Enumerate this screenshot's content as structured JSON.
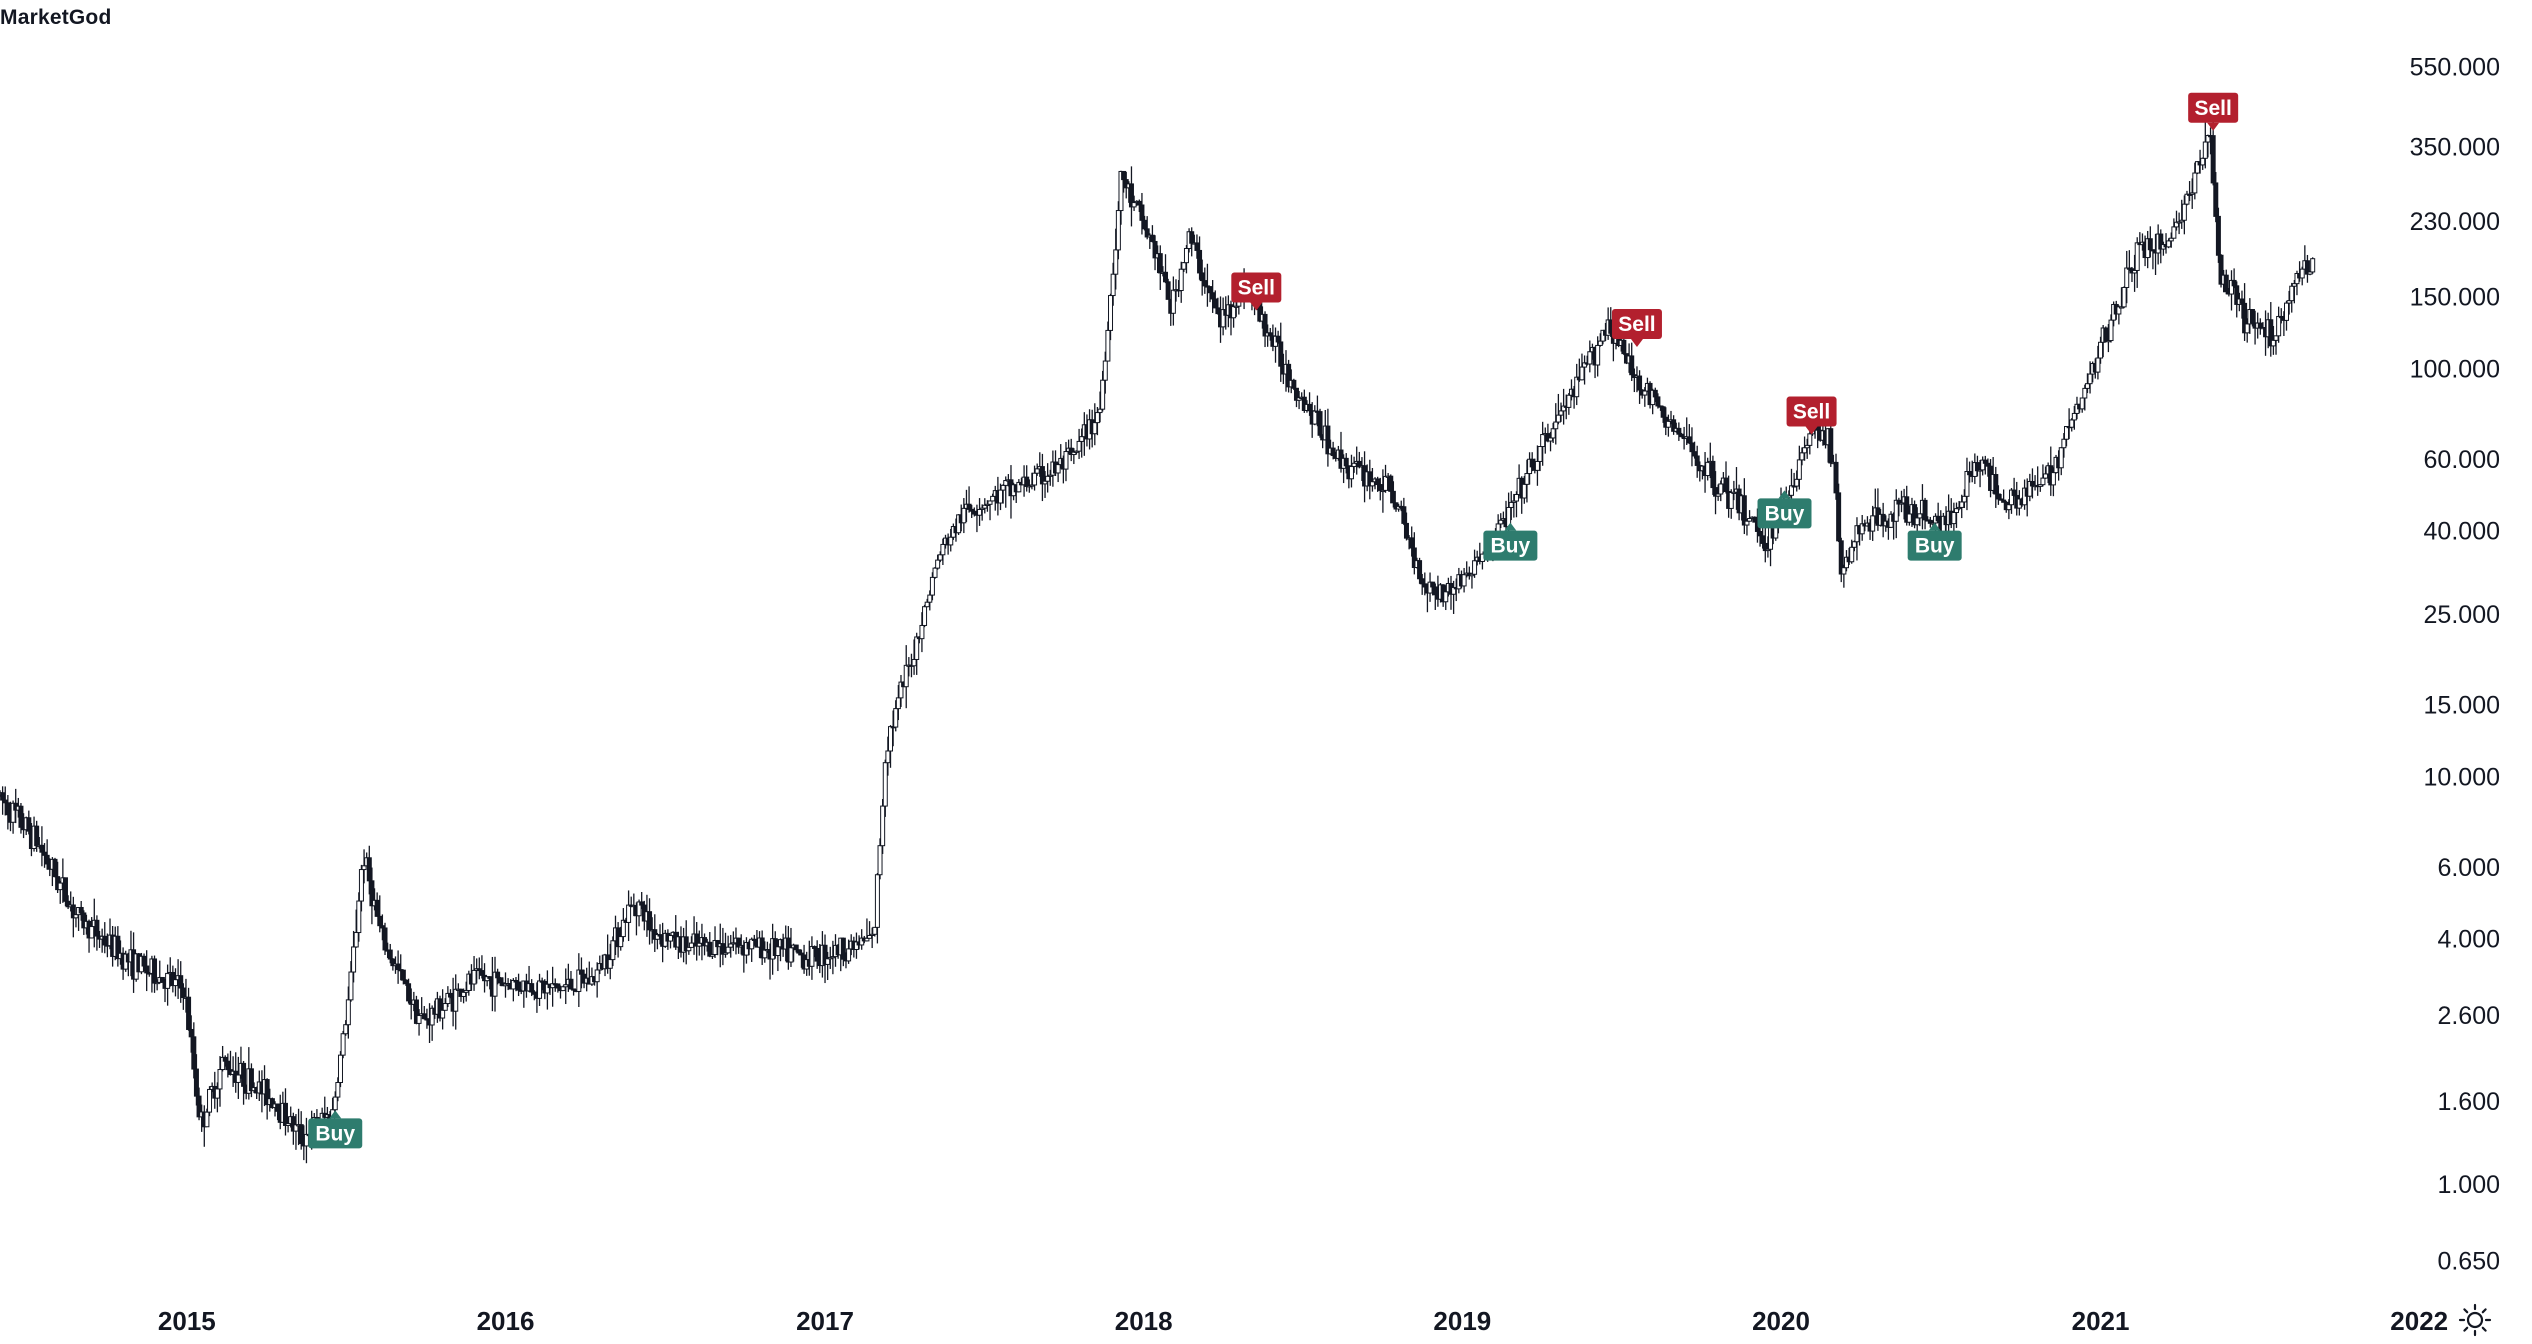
{
  "brand": "MarketGod",
  "chart_data": {
    "type": "candlestick",
    "yscale": "log",
    "ylim": [
      0.52,
      800
    ],
    "y_ticks": [
      "550.000",
      "350.000",
      "230.000",
      "150.000",
      "100.000",
      "60.000",
      "40.000",
      "25.000",
      "15.000",
      "10.000",
      "6.000",
      "4.000",
      "2.600",
      "1.600",
      "1.000",
      "0.650"
    ],
    "x_range": [
      "2014-06-01",
      "2022-04-15"
    ],
    "x_ticks": [
      {
        "date": "2015-01-01",
        "label": "2015"
      },
      {
        "date": "2016-01-01",
        "label": "2016"
      },
      {
        "date": "2017-01-01",
        "label": "2017"
      },
      {
        "date": "2018-01-01",
        "label": "2018"
      },
      {
        "date": "2019-01-01",
        "label": "2019"
      },
      {
        "date": "2020-01-01",
        "label": "2020"
      },
      {
        "date": "2021-01-01",
        "label": "2021"
      },
      {
        "date": "2022-01-01",
        "label": "2022"
      }
    ],
    "price_path": [
      [
        "2014-06-01",
        9.0
      ],
      [
        "2014-07-15",
        7.0
      ],
      [
        "2014-09-01",
        4.5
      ],
      [
        "2014-11-01",
        3.5
      ],
      [
        "2015-01-01",
        3.0
      ],
      [
        "2015-01-20",
        1.4
      ],
      [
        "2015-02-15",
        2.0
      ],
      [
        "2015-04-15",
        1.6
      ],
      [
        "2015-05-15",
        1.3
      ],
      [
        "2015-06-20",
        1.5
      ],
      [
        "2015-07-10",
        3.0
      ],
      [
        "2015-07-25",
        6.5
      ],
      [
        "2015-08-15",
        4.0
      ],
      [
        "2015-10-01",
        2.5
      ],
      [
        "2015-12-01",
        3.2
      ],
      [
        "2016-01-15",
        3.1
      ],
      [
        "2016-03-01",
        3.0
      ],
      [
        "2016-04-15",
        3.2
      ],
      [
        "2016-06-01",
        5.0
      ],
      [
        "2016-06-20",
        4.2
      ],
      [
        "2016-08-01",
        3.8
      ],
      [
        "2016-10-01",
        3.9
      ],
      [
        "2016-12-15",
        3.6
      ],
      [
        "2017-02-01",
        3.8
      ],
      [
        "2017-03-01",
        4.0
      ],
      [
        "2017-03-15",
        12.0
      ],
      [
        "2017-04-15",
        20.0
      ],
      [
        "2017-05-15",
        35.0
      ],
      [
        "2017-06-15",
        45.0
      ],
      [
        "2017-08-01",
        50.0
      ],
      [
        "2017-09-15",
        55.0
      ],
      [
        "2017-10-15",
        60.0
      ],
      [
        "2017-11-15",
        80.0
      ],
      [
        "2017-12-10",
        300.0
      ],
      [
        "2017-12-20",
        260.0
      ],
      [
        "2018-01-15",
        200.0
      ],
      [
        "2018-02-05",
        140.0
      ],
      [
        "2018-02-25",
        210.0
      ],
      [
        "2018-04-01",
        130.0
      ],
      [
        "2018-05-01",
        160.0
      ],
      [
        "2018-06-15",
        100.0
      ],
      [
        "2018-08-15",
        60.0
      ],
      [
        "2018-10-15",
        50.0
      ],
      [
        "2018-11-20",
        30.0
      ],
      [
        "2018-12-15",
        28.0
      ],
      [
        "2019-01-15",
        32.0
      ],
      [
        "2019-03-01",
        45.0
      ],
      [
        "2019-04-15",
        70.0
      ],
      [
        "2019-05-15",
        90.0
      ],
      [
        "2019-06-20",
        130.0
      ],
      [
        "2019-07-15",
        100.0
      ],
      [
        "2019-08-15",
        80.0
      ],
      [
        "2019-10-15",
        55.0
      ],
      [
        "2019-11-20",
        45.0
      ],
      [
        "2019-12-20",
        38.0
      ],
      [
        "2020-01-20",
        55.0
      ],
      [
        "2020-02-15",
        75.0
      ],
      [
        "2020-03-05",
        60.0
      ],
      [
        "2020-03-13",
        30.0
      ],
      [
        "2020-04-01",
        40.0
      ],
      [
        "2020-05-15",
        45.0
      ],
      [
        "2020-07-15",
        42.0
      ],
      [
        "2020-08-15",
        60.0
      ],
      [
        "2020-09-15",
        48.0
      ],
      [
        "2020-11-01",
        52.0
      ],
      [
        "2020-12-15",
        85.0
      ],
      [
        "2021-01-20",
        140.0
      ],
      [
        "2021-02-20",
        200.0
      ],
      [
        "2021-03-20",
        200.0
      ],
      [
        "2021-04-20",
        280.0
      ],
      [
        "2021-05-10",
        380.0
      ],
      [
        "2021-05-20",
        170.0
      ],
      [
        "2021-06-20",
        130.0
      ],
      [
        "2021-07-20",
        120.0
      ],
      [
        "2021-08-20",
        170.0
      ],
      [
        "2021-09-01",
        180.0
      ]
    ],
    "signals": [
      {
        "type": "buy",
        "label": "Buy",
        "date": "2015-06-20",
        "price": 1.45
      },
      {
        "type": "sell",
        "label": "Sell",
        "date": "2018-05-10",
        "price": 145.0
      },
      {
        "type": "buy",
        "label": "Buy",
        "date": "2019-02-25",
        "price": 40.0
      },
      {
        "type": "sell",
        "label": "Sell",
        "date": "2019-07-20",
        "price": 118.0
      },
      {
        "type": "buy",
        "label": "Buy",
        "date": "2020-01-05",
        "price": 48.0
      },
      {
        "type": "sell",
        "label": "Sell",
        "date": "2020-02-05",
        "price": 72.0
      },
      {
        "type": "buy",
        "label": "Buy",
        "date": "2020-06-25",
        "price": 40.0
      },
      {
        "type": "sell",
        "label": "Sell",
        "date": "2021-05-10",
        "price": 400.0
      }
    ]
  },
  "colors": {
    "buy": "#2e7c6e",
    "sell": "#b3202e",
    "candle": "#131722"
  },
  "settings_icon": "gear-icon"
}
